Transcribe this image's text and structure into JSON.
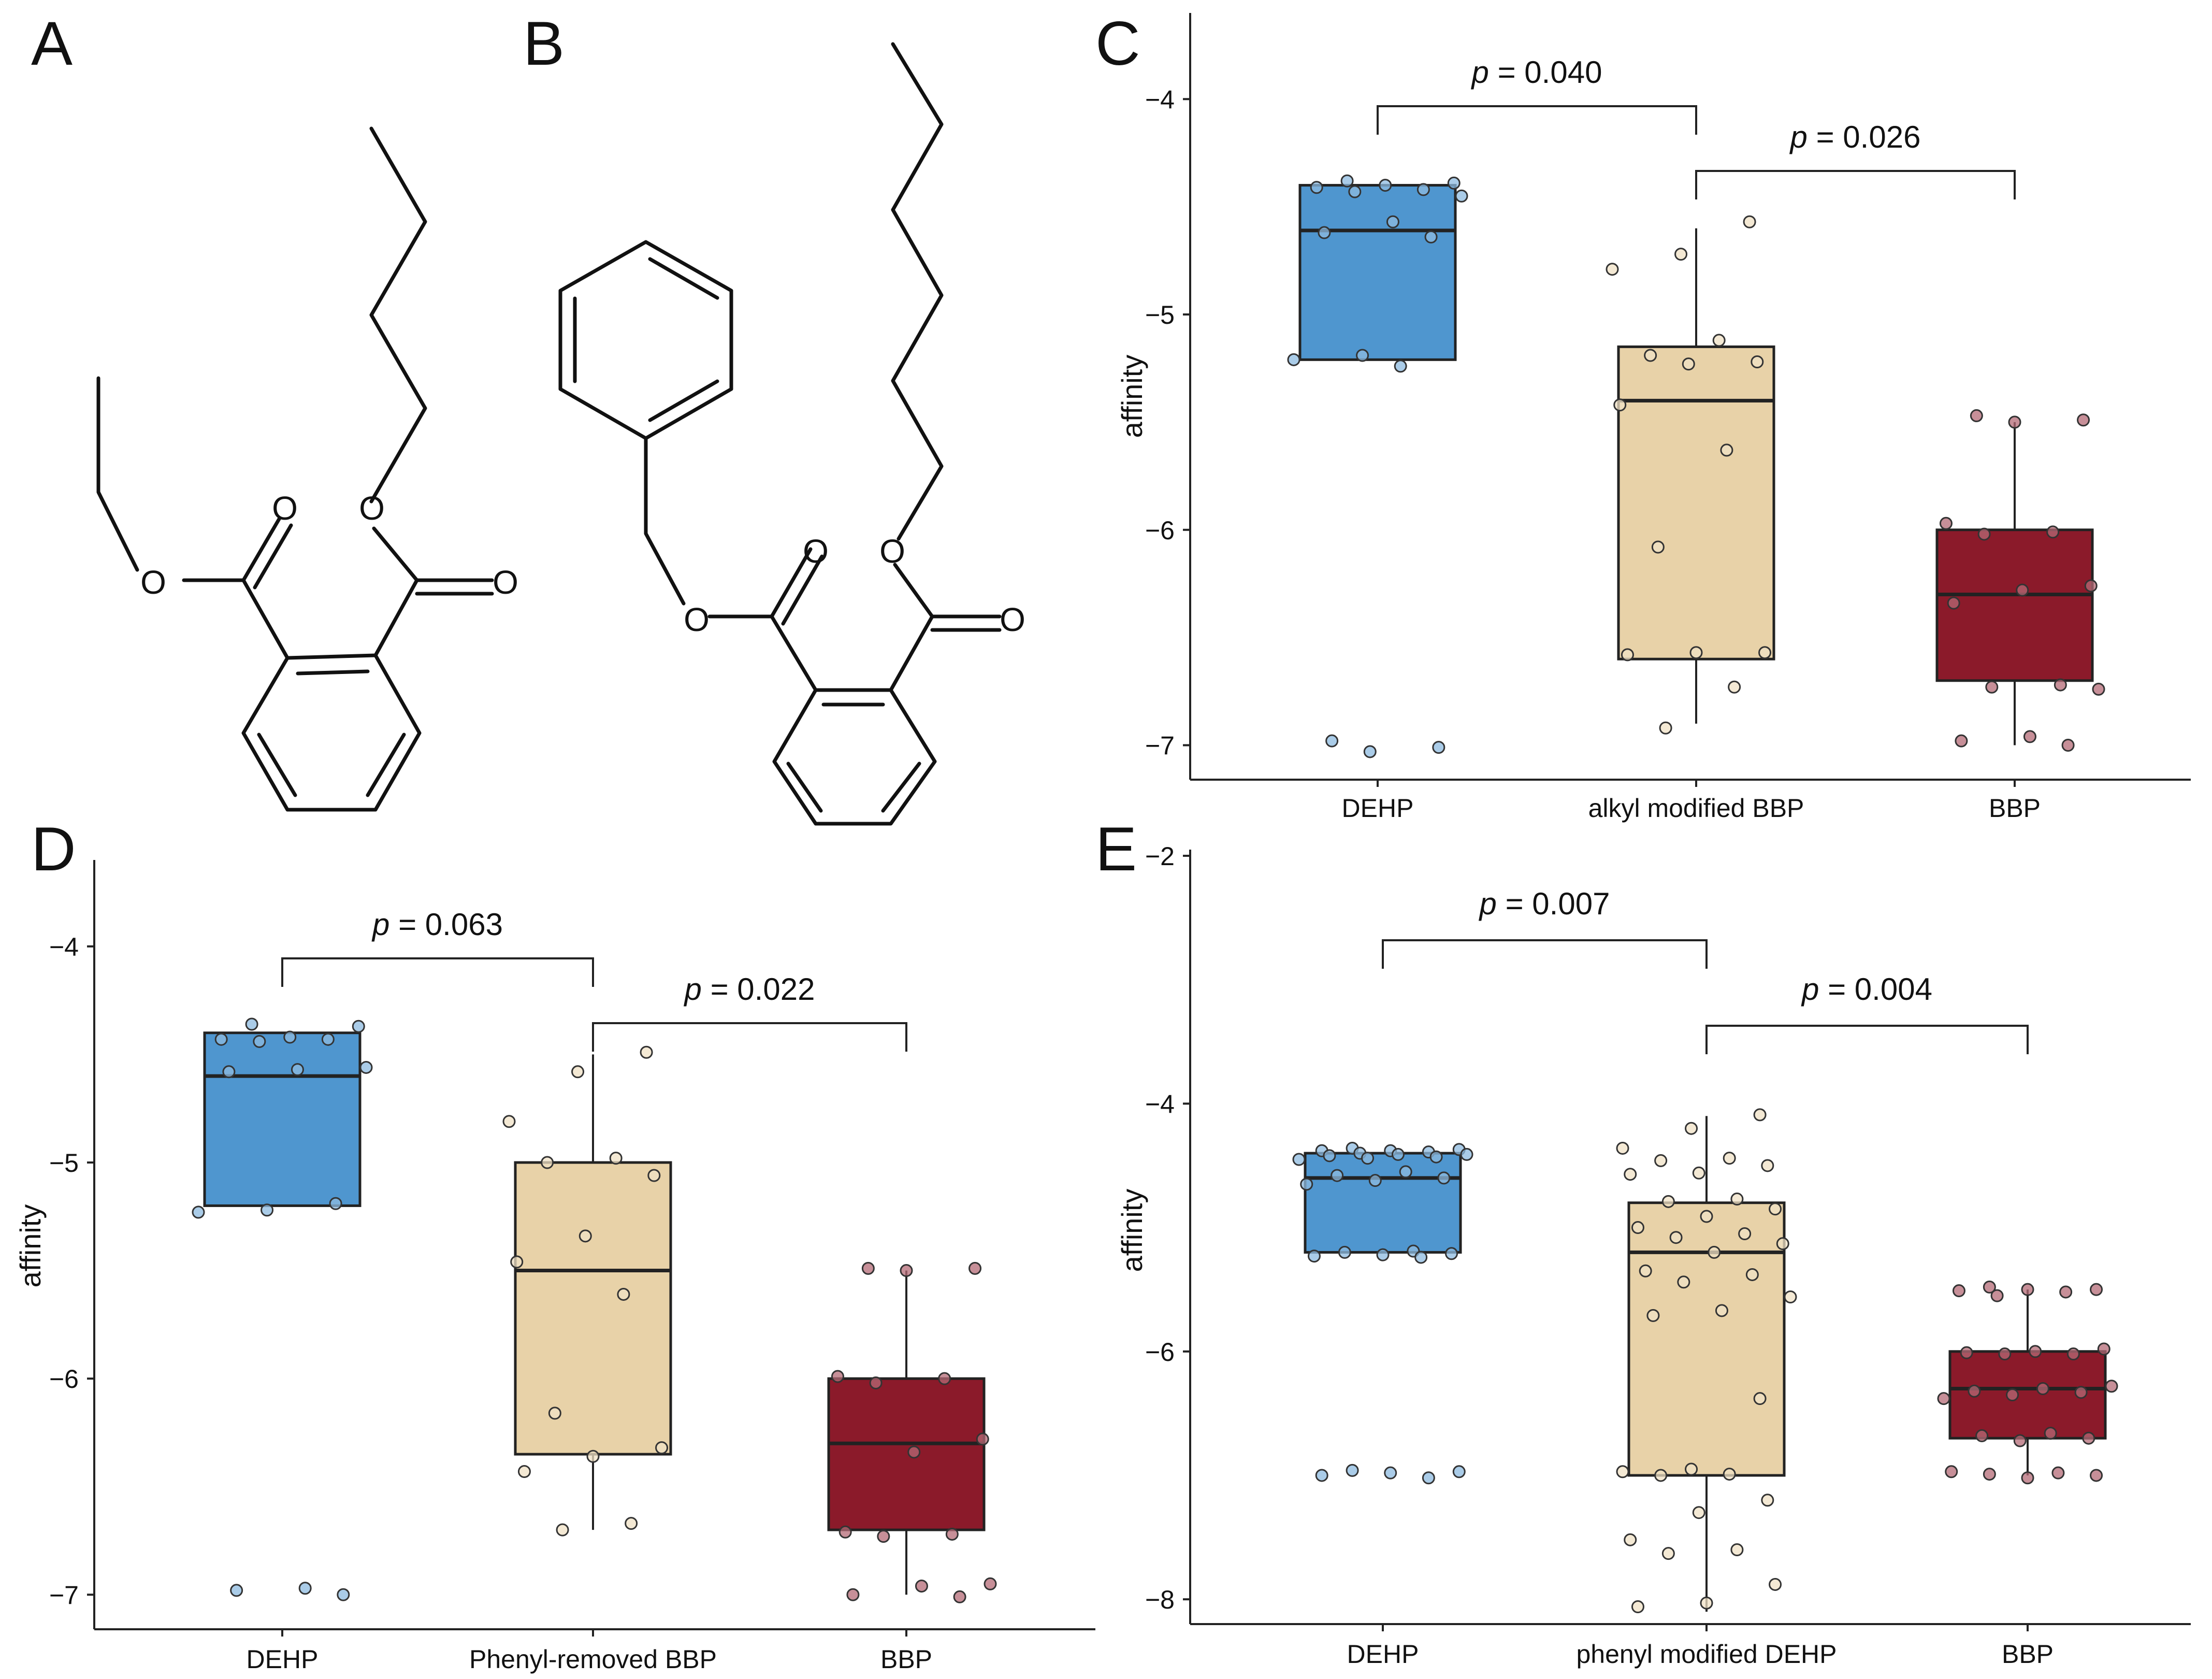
{
  "figure": {
    "panels": [
      "A",
      "B",
      "C",
      "D",
      "E"
    ]
  },
  "molecules": {
    "A": {
      "atoms": [
        "O",
        "O",
        "O",
        "O"
      ]
    },
    "B": {
      "atoms": [
        "O",
        "O",
        "O",
        "O"
      ]
    }
  },
  "colors": {
    "DEHP": "#4f96cf",
    "mid": "#e8d2a8",
    "BBP": "#8b1a2a",
    "line": "#222222",
    "point_edge": "#333333"
  },
  "chart_data": [
    {
      "panel": "C",
      "type": "box",
      "ylabel": "affinity",
      "ylim": [
        -7.16,
        -3.6
      ],
      "yticks": [
        -4,
        -5,
        -6,
        -7
      ],
      "categories": [
        "DEHP",
        "alkyl modified BBP",
        "BBP"
      ],
      "boxes": [
        {
          "q1": -5.21,
          "median": -4.61,
          "q3": -4.4,
          "whisker_low": -5.21,
          "whisker_high": -4.4,
          "points": [
            -4.38,
            -4.39,
            -4.4,
            -4.41,
            -4.42,
            -4.43,
            -4.45,
            -4.57,
            -4.62,
            -4.64,
            -5.19,
            -5.21,
            -5.24,
            -6.98,
            -7.01,
            -7.03
          ]
        },
        {
          "q1": -6.6,
          "median": -5.4,
          "q3": -5.15,
          "whisker_low": -6.9,
          "whisker_high": -4.6,
          "points": [
            -4.57,
            -4.72,
            -4.79,
            -5.12,
            -5.19,
            -5.22,
            -5.23,
            -5.42,
            -5.63,
            -6.08,
            -6.57,
            -6.57,
            -6.58,
            -6.73,
            -6.92
          ]
        },
        {
          "q1": -6.7,
          "median": -6.3,
          "q3": -6.0,
          "whisker_low": -7.0,
          "whisker_high": -5.5,
          "points": [
            -5.47,
            -5.49,
            -5.5,
            -5.97,
            -6.01,
            -6.02,
            -6.26,
            -6.28,
            -6.34,
            -6.72,
            -6.73,
            -6.74,
            -6.96,
            -6.98,
            -7.0
          ]
        }
      ],
      "brackets": [
        {
          "from": 0,
          "to": 1,
          "p_text": "p",
          "value_text": " = 0.040"
        },
        {
          "from": 1,
          "to": 2,
          "p_text": "p",
          "value_text": " = 0.026"
        }
      ]
    },
    {
      "panel": "D",
      "type": "box",
      "ylabel": "affinity",
      "ylim": [
        -7.16,
        -3.6
      ],
      "yticks": [
        -4,
        -5,
        -6,
        -7
      ],
      "categories": [
        "DEHP",
        "Phenyl-removed BBP",
        "BBP"
      ],
      "boxes": [
        {
          "q1": -5.2,
          "median": -4.6,
          "q3": -4.4,
          "whisker_low": -5.2,
          "whisker_high": -4.4,
          "points": [
            -4.36,
            -4.37,
            -4.42,
            -4.43,
            -4.43,
            -4.44,
            -4.56,
            -4.57,
            -4.58,
            -5.19,
            -5.22,
            -5.23,
            -6.97,
            -6.98,
            -7.0
          ]
        },
        {
          "q1": -6.35,
          "median": -5.5,
          "q3": -5.0,
          "whisker_low": -6.7,
          "whisker_high": -4.5,
          "points": [
            -4.49,
            -4.58,
            -4.81,
            -4.98,
            -5.0,
            -5.06,
            -5.34,
            -5.46,
            -5.61,
            -6.16,
            -6.32,
            -6.36,
            -6.43,
            -6.67,
            -6.7
          ]
        },
        {
          "q1": -6.7,
          "median": -6.3,
          "q3": -6.0,
          "whisker_low": -7.0,
          "whisker_high": -5.5,
          "points": [
            -5.49,
            -5.49,
            -5.5,
            -5.99,
            -6.0,
            -6.02,
            -6.28,
            -6.34,
            -6.71,
            -6.72,
            -6.73,
            -6.95,
            -6.96,
            -7.0,
            -7.01
          ]
        }
      ],
      "brackets": [
        {
          "from": 0,
          "to": 1,
          "p_text": "p",
          "value_text": " = 0.063"
        },
        {
          "from": 1,
          "to": 2,
          "p_text": "p",
          "value_text": " = 0.022"
        }
      ]
    },
    {
      "panel": "E",
      "type": "box",
      "ylabel": "affinity",
      "ylim": [
        -8.2,
        -1.95
      ],
      "yticks": [
        -2,
        -4,
        -6,
        -8
      ],
      "categories": [
        "DEHP",
        "phenyl modified DEHP",
        "BBP"
      ],
      "boxes": [
        {
          "q1": -5.2,
          "median": -4.6,
          "q3": -4.4,
          "whisker_low": -5.2,
          "whisker_high": -4.4,
          "points": [
            -4.36,
            -4.37,
            -4.38,
            -4.38,
            -4.39,
            -4.4,
            -4.41,
            -4.41,
            -4.42,
            -4.43,
            -4.44,
            -4.45,
            -4.55,
            -4.58,
            -4.6,
            -4.62,
            -4.65,
            -5.19,
            -5.2,
            -5.21,
            -5.22,
            -5.23,
            -5.24,
            -6.96,
            -6.97,
            -6.98,
            -7.0,
            -7.02
          ]
        },
        {
          "q1": -7.0,
          "median": -5.2,
          "q3": -4.8,
          "whisker_low": -8.1,
          "whisker_high": -4.1,
          "points": [
            -4.09,
            -4.2,
            -4.36,
            -4.44,
            -4.46,
            -4.5,
            -4.56,
            -4.57,
            -4.77,
            -4.79,
            -4.85,
            -4.91,
            -5.0,
            -5.05,
            -5.08,
            -5.13,
            -5.2,
            -5.35,
            -5.38,
            -5.44,
            -5.56,
            -5.67,
            -5.71,
            -6.38,
            -6.95,
            -6.97,
            -6.99,
            -7.0,
            -7.2,
            -7.3,
            -7.52,
            -7.6,
            -7.63,
            -7.88,
            -8.03,
            -8.06
          ]
        },
        {
          "q1": -6.7,
          "median": -6.3,
          "q3": -6.0,
          "whisker_low": -7.0,
          "whisker_high": -5.5,
          "points": [
            -5.48,
            -5.5,
            -5.5,
            -5.51,
            -5.52,
            -5.55,
            -5.98,
            -6.0,
            -6.01,
            -6.02,
            -6.02,
            -6.28,
            -6.3,
            -6.32,
            -6.33,
            -6.35,
            -6.38,
            -6.66,
            -6.68,
            -6.7,
            -6.72,
            -6.97,
            -6.98,
            -6.99,
            -7.0,
            -7.02
          ]
        }
      ],
      "brackets": [
        {
          "from": 0,
          "to": 1,
          "p_text": "p",
          "value_text": " = 0.007"
        },
        {
          "from": 1,
          "to": 2,
          "p_text": "p",
          "value_text": " = 0.004"
        }
      ]
    }
  ]
}
